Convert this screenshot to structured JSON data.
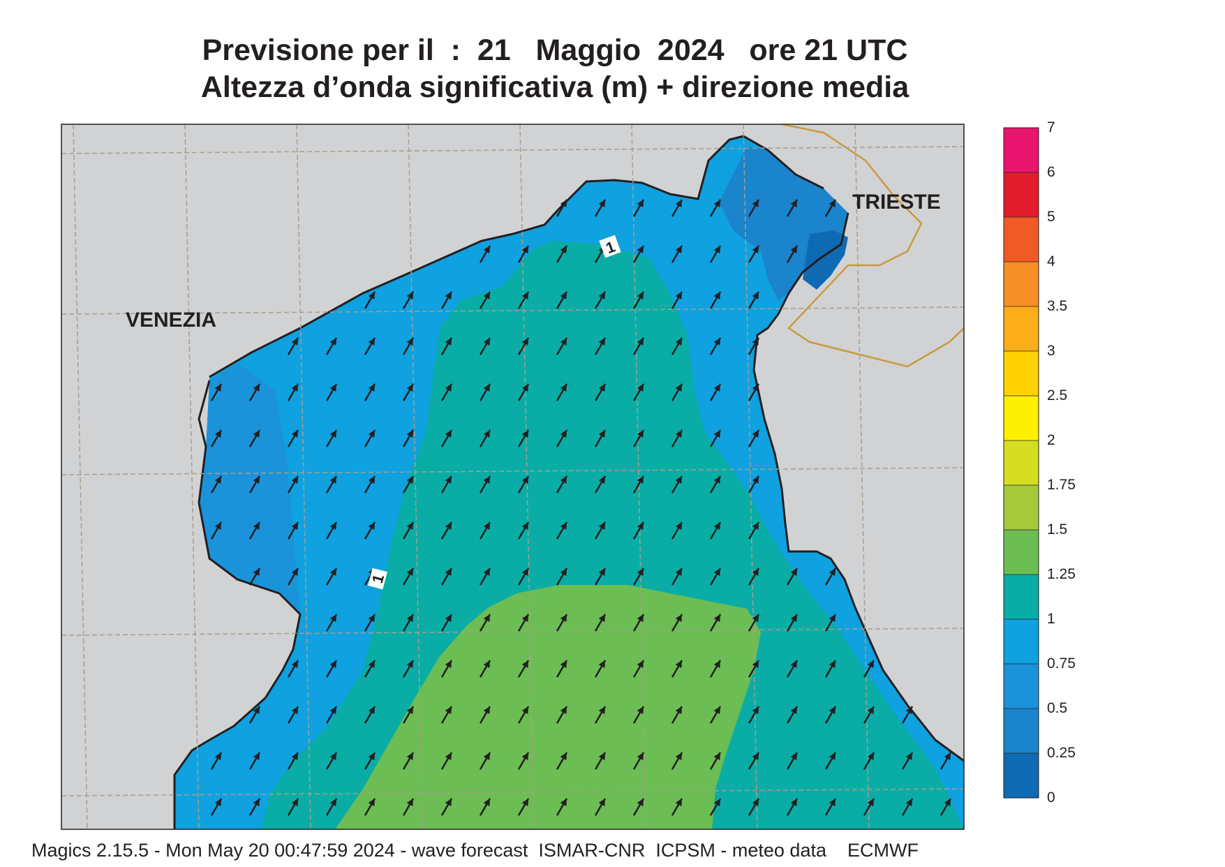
{
  "title": {
    "line1": "Previsione per il  :  21   Maggio  2024   ore 21 UTC",
    "line2": "Altezza d’onda significativa (m) + direzione media"
  },
  "map": {
    "places": {
      "venezia": "VENEZIA",
      "trieste": "TRIESTE"
    },
    "contour_label": "1",
    "colors": {
      "land": "#d1d2d4",
      "sea_0_25": "#0f6ab4",
      "sea_0_5": "#1a84cc",
      "sea_0_75": "#1b93da",
      "sea_1": "#0fa1e0",
      "sea_1_25": "#09ada6",
      "sea_1_5": "#6cbd53",
      "grid": "#a89f8c",
      "border": "#c89a3c",
      "coast": "#231f20",
      "arrow": "#231f20"
    },
    "arrow_direction_to_deg": 30
  },
  "colorbar": {
    "levels": [
      "7",
      "6",
      "5",
      "4",
      "3.5",
      "3",
      "2.5",
      "2",
      "1.75",
      "1.5",
      "1.25",
      "1",
      "0.75",
      "0.5",
      "0.25",
      "0"
    ],
    "colors": [
      "#e9156e",
      "#e31c2d",
      "#f05a24",
      "#f68f26",
      "#fbad1a",
      "#fdd200",
      "#fef100",
      "#d5de21",
      "#a6c93b",
      "#6cbd53",
      "#09ada6",
      "#0fa1e0",
      "#1b93da",
      "#1a84cc",
      "#0f6ab4"
    ]
  },
  "footer": "Magics 2.15.5 - Mon May 20 00:47:59 2024 - wave forecast  ISMAR-CNR  ICPSM - meteo data    ECMWF"
}
